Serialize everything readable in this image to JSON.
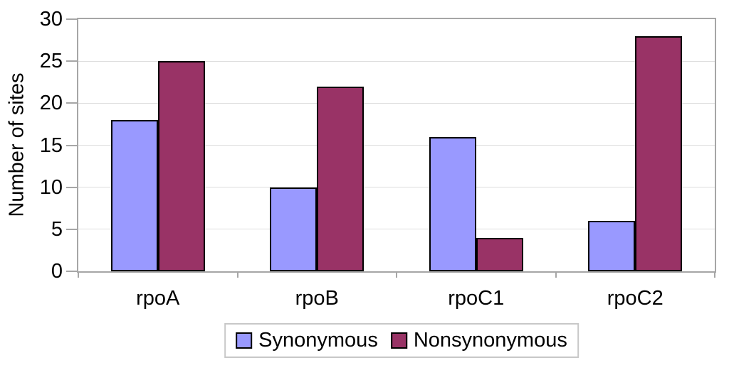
{
  "chart_data": {
    "type": "bar",
    "title": "",
    "categories": [
      "rpoA",
      "rpoB",
      "rpoC1",
      "rpoC2"
    ],
    "series": [
      {
        "name": "Synonymous",
        "color": "#9999FF",
        "values": [
          18,
          10,
          16,
          6
        ]
      },
      {
        "name": "Nonsynonymous",
        "color": "#993366",
        "values": [
          25,
          22,
          4,
          28
        ]
      }
    ],
    "xlabel": "",
    "ylabel": "Number of sites",
    "ylim": [
      0,
      30
    ],
    "yticks": [
      0,
      5,
      10,
      15,
      20,
      25,
      30
    ],
    "grid": true,
    "legend_position": "bottom",
    "colors": {
      "background": "#FFFFFF",
      "axis_frame": "#A6A6A6",
      "gridline": "#DEDEDE",
      "bar_border": "#000000",
      "legend_border": "#C8C8C8",
      "text": "#000000"
    }
  }
}
